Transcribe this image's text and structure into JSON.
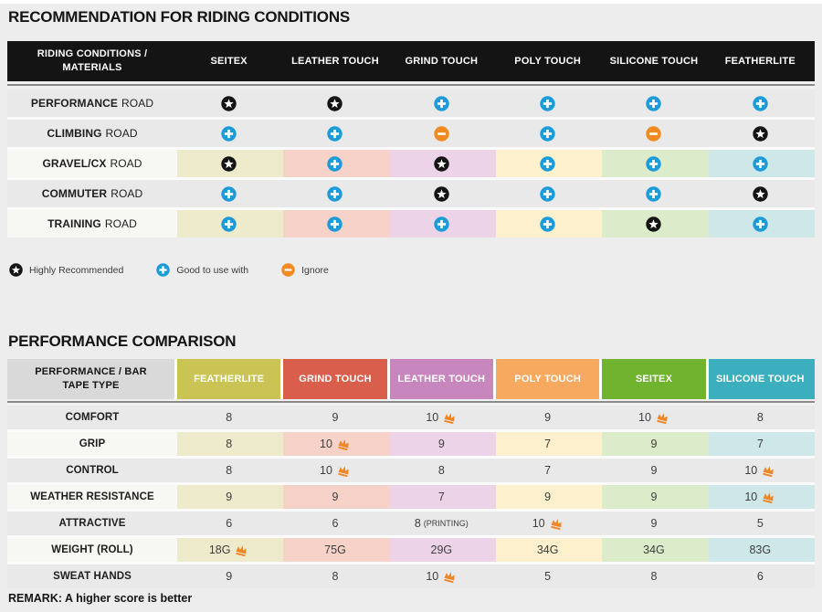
{
  "table1": {
    "title": "RECOMMENDATION FOR RIDING CONDITIONS",
    "header_label": "RIDING CONDITIONS / MATERIALS",
    "columns": [
      "SEITEX",
      "LEATHER TOUCH",
      "GRIND TOUCH",
      "POLY TOUCH",
      "SILICONE TOUCH",
      "FEATHERLITE"
    ],
    "rows": [
      {
        "label_emphasis": "PERFORMANCE",
        "label_rest": "ROAD",
        "tinted": false,
        "cells": [
          "star",
          "star",
          "plus",
          "plus",
          "plus",
          "plus"
        ]
      },
      {
        "label_emphasis": "CLIMBING",
        "label_rest": "ROAD",
        "tinted": false,
        "cells": [
          "plus",
          "plus",
          "minus",
          "plus",
          "minus",
          "star"
        ]
      },
      {
        "label_emphasis": "GRAVEL/CX",
        "label_rest": "ROAD",
        "tinted": true,
        "cells": [
          "star",
          "plus",
          "star",
          "plus",
          "plus",
          "plus"
        ]
      },
      {
        "label_emphasis": "COMMUTER",
        "label_rest": "ROAD",
        "tinted": false,
        "cells": [
          "plus",
          "plus",
          "star",
          "plus",
          "plus",
          "star"
        ]
      },
      {
        "label_emphasis": "TRAINING",
        "label_rest": "ROAD",
        "tinted": true,
        "cells": [
          "plus",
          "plus",
          "plus",
          "plus",
          "star",
          "plus"
        ]
      }
    ],
    "legend": [
      {
        "icon": "star",
        "label": "Highly Recommended"
      },
      {
        "icon": "plus",
        "label": "Good to use with"
      },
      {
        "icon": "minus",
        "label": "Ignore"
      }
    ]
  },
  "table2": {
    "title": "PERFORMANCE COMPARISON",
    "header_label": "PERFORMANCE / BAR TAPE TYPE",
    "columns": [
      {
        "name": "FEATHERLITE",
        "color": "#c9c454"
      },
      {
        "name": "GRIND TOUCH",
        "color": "#d95e4c"
      },
      {
        "name": "LEATHER TOUCH",
        "color": "#c786be"
      },
      {
        "name": "POLY TOUCH",
        "color": "#f7a95f"
      },
      {
        "name": "SEITEX",
        "color": "#6fb32e"
      },
      {
        "name": "SILICONE TOUCH",
        "color": "#3bafbd"
      }
    ],
    "rows": [
      {
        "label": "COMFORT",
        "tinted": false,
        "cells": [
          {
            "value": "8"
          },
          {
            "value": "9"
          },
          {
            "value": "10",
            "crown": true
          },
          {
            "value": "9"
          },
          {
            "value": "10",
            "crown": true
          },
          {
            "value": "8"
          }
        ]
      },
      {
        "label": "GRIP",
        "tinted": true,
        "cells": [
          {
            "value": "8"
          },
          {
            "value": "10",
            "crown": true
          },
          {
            "value": "9"
          },
          {
            "value": "7"
          },
          {
            "value": "9"
          },
          {
            "value": "7"
          }
        ]
      },
      {
        "label": "CONTROL",
        "tinted": false,
        "cells": [
          {
            "value": "8"
          },
          {
            "value": "10",
            "crown": true
          },
          {
            "value": "8"
          },
          {
            "value": "7"
          },
          {
            "value": "9"
          },
          {
            "value": "10",
            "crown": true
          }
        ]
      },
      {
        "label": "WEATHER RESISTANCE",
        "tinted": true,
        "cells": [
          {
            "value": "9"
          },
          {
            "value": "9"
          },
          {
            "value": "7"
          },
          {
            "value": "9"
          },
          {
            "value": "9"
          },
          {
            "value": "10",
            "crown": true
          }
        ]
      },
      {
        "label": "ATTRACTIVE",
        "tinted": false,
        "cells": [
          {
            "value": "6"
          },
          {
            "value": "6"
          },
          {
            "value": "8",
            "suffix": "(PRINTING)"
          },
          {
            "value": "10",
            "crown": true
          },
          {
            "value": "9"
          },
          {
            "value": "5"
          }
        ]
      },
      {
        "label": "WEIGHT (ROLL)",
        "tinted": true,
        "cells": [
          {
            "value": "18G",
            "crown": true
          },
          {
            "value": "75G"
          },
          {
            "value": "29G"
          },
          {
            "value": "34G"
          },
          {
            "value": "34G"
          },
          {
            "value": "83G"
          }
        ]
      },
      {
        "label": "SWEAT HANDS",
        "tinted": false,
        "cells": [
          {
            "value": "9"
          },
          {
            "value": "8"
          },
          {
            "value": "10",
            "crown": true
          },
          {
            "value": "5"
          },
          {
            "value": "8"
          },
          {
            "value": "6"
          }
        ]
      }
    ],
    "remark": "REMARK: A higher score is better"
  },
  "colors": {
    "page_bg": "#ededed",
    "table1_header_bg": "#141414",
    "table2_label_header_bg": "#d9d9d9",
    "row_gray": "#e9e9e9",
    "row_label_light": "#f7f7f4",
    "column_tints": [
      "#eeeacc",
      "#f7d2c8",
      "#edd3e8",
      "#fdf0cc",
      "#dcecca",
      "#cee8ea"
    ],
    "icon_star": "#141414",
    "icon_plus": "#1b9cd8",
    "icon_minus": "#f08a21",
    "icon_crown": "#ef8524"
  }
}
